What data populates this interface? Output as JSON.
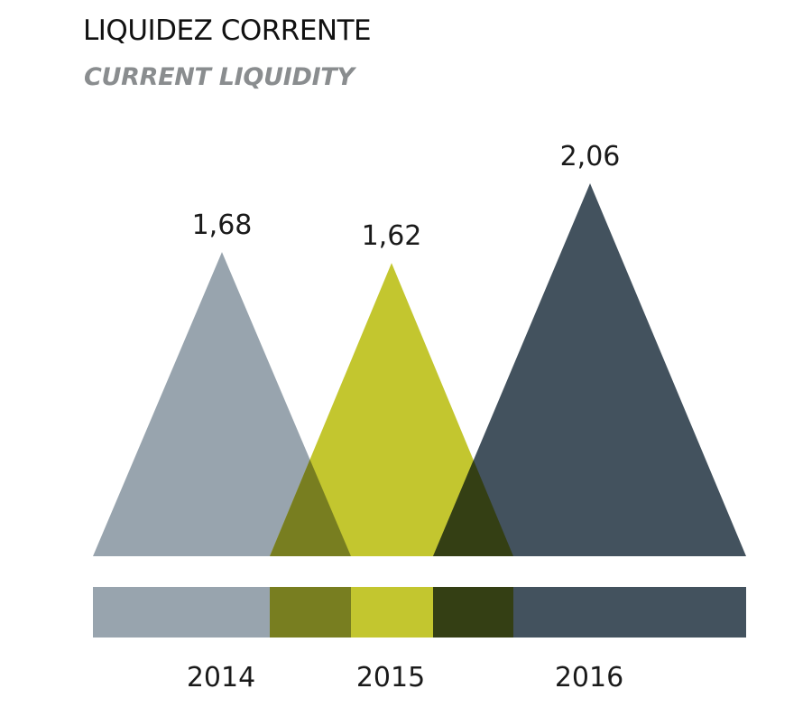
{
  "header": {
    "title": "LIQUIDEZ CORRENTE",
    "subtitle": "CURRENT LIQUIDITY"
  },
  "colors": {
    "s2014": "#98a4ae",
    "s2015": "#c3c62f",
    "s2016": "#43525e",
    "overlap_2014_2015": "#787e20",
    "overlap_2015_2016": "#343f14"
  },
  "chart_data": {
    "type": "bar",
    "categories": [
      "2014",
      "2015",
      "2016"
    ],
    "values": [
      1.68,
      1.62,
      2.06
    ],
    "value_labels": [
      "1,68",
      "1,62",
      "2,06"
    ],
    "title": "LIQUIDEZ CORRENTE",
    "subtitle": "CURRENT LIQUIDITY",
    "xlabel": "",
    "ylabel": "",
    "grid": false,
    "legend": "none"
  }
}
